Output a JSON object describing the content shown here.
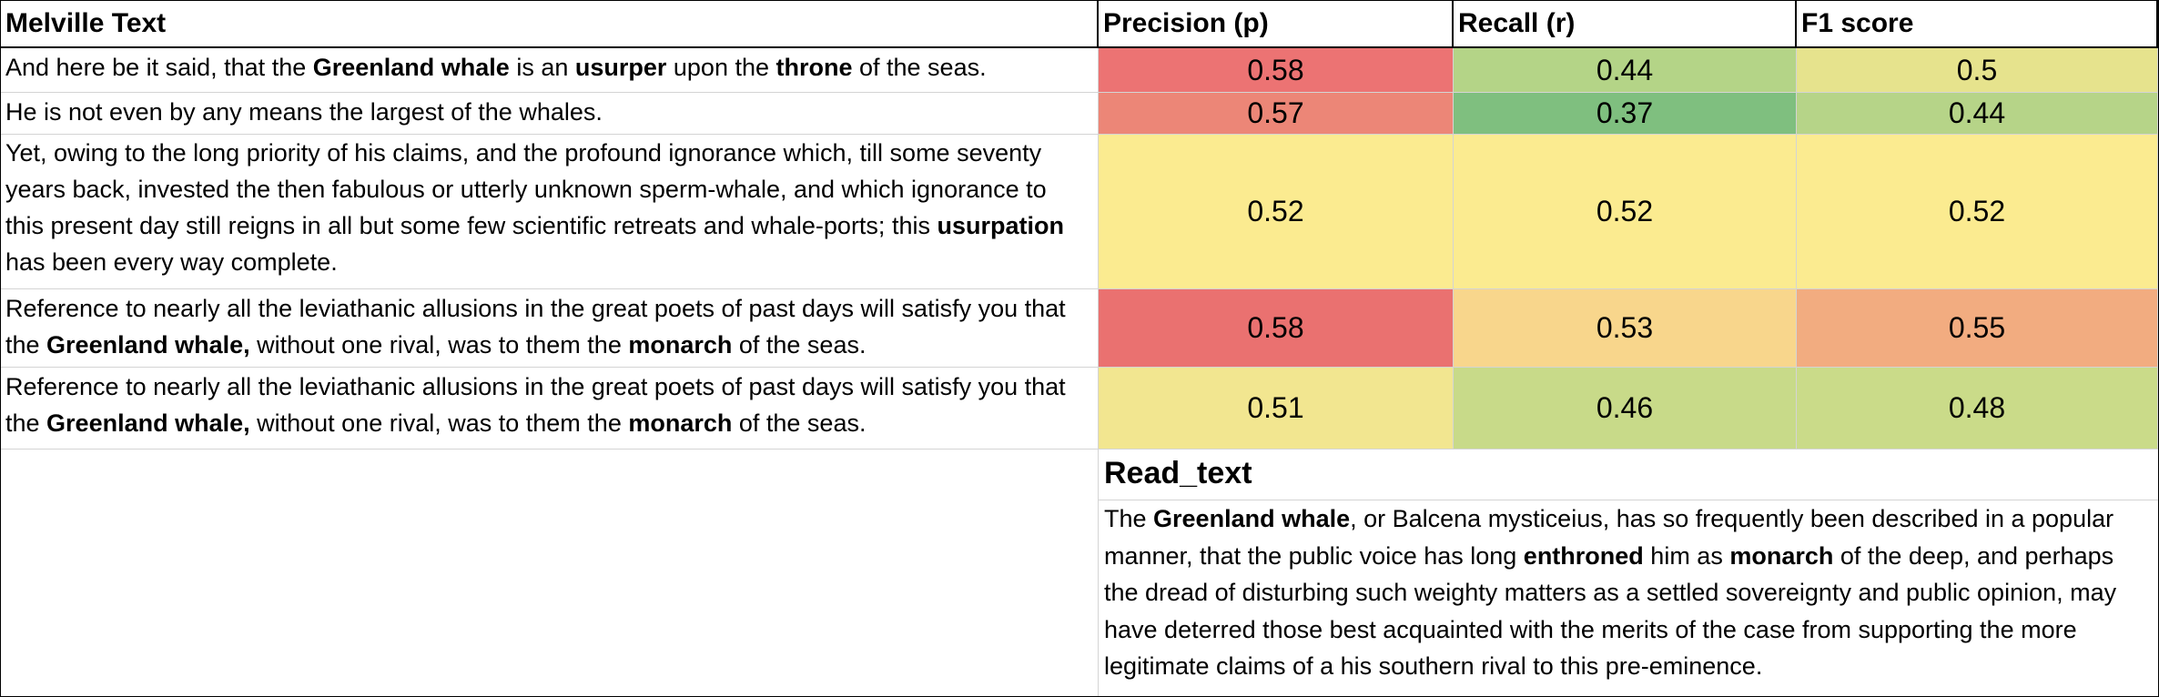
{
  "headers": {
    "text": "Melville Text",
    "precision": "Precision (p)",
    "recall": "Recall (r)",
    "f1": "F1 score"
  },
  "rows": [
    {
      "segments": [
        {
          "t": "And here be it said, that the "
        },
        {
          "t": "Greenland whale",
          "b": true
        },
        {
          "t": " is an "
        },
        {
          "t": "usurper",
          "b": true
        },
        {
          "t": " upon the "
        },
        {
          "t": "throne",
          "b": true
        },
        {
          "t": " of the seas."
        }
      ],
      "precision": "0.58",
      "recall": "0.44",
      "f1": "0.5",
      "colors": {
        "precision": "#ec7373",
        "recall": "#b4d487",
        "f1": "#e6e38d"
      }
    },
    {
      "segments": [
        {
          "t": "He is not even by any means the largest of the whales."
        }
      ],
      "precision": "0.57",
      "recall": "0.37",
      "f1": "0.44",
      "colors": {
        "precision": "#ec8677",
        "recall": "#7fbf7f",
        "f1": "#b6d488"
      }
    },
    {
      "segments": [
        {
          "t": "Yet, owing to the long priority of his claims, and the profound ignorance which, till some seventy years back, invested the then fabulous or utterly unknown sperm-whale, and which ignorance to this present day still reigns in all but some few scientific retreats and whale-ports; this "
        },
        {
          "t": "usurpation",
          "b": true
        },
        {
          "t": " has been every way complete."
        }
      ],
      "precision": "0.52",
      "recall": "0.52",
      "f1": "0.52",
      "colors": {
        "precision": "#fbeb90",
        "recall": "#fbeb90",
        "f1": "#fbeb90"
      }
    },
    {
      "segments": [
        {
          "t": "Reference to nearly all the leviathanic allusions in the great poets of past days will satisfy you that the "
        },
        {
          "t": "Greenland whale,",
          "b": true
        },
        {
          "t": " without one rival, was to them the "
        },
        {
          "t": "monarch",
          "b": true
        },
        {
          "t": " of the seas."
        }
      ],
      "precision": "0.58",
      "recall": "0.53",
      "f1": "0.55",
      "colors": {
        "precision": "#ea7170",
        "recall": "#f8d68c",
        "f1": "#f2ac80"
      }
    },
    {
      "segments": [
        {
          "t": "Reference to nearly all the leviathanic allusions in the great poets of past days will satisfy you that the "
        },
        {
          "t": "Greenland whale,",
          "b": true
        },
        {
          "t": " without one rival, was to them the "
        },
        {
          "t": "monarch",
          "b": true
        },
        {
          "t": " of the seas."
        }
      ],
      "precision": "0.51",
      "recall": "0.46",
      "f1": "0.48",
      "colors": {
        "precision": "#f2e690",
        "recall": "#c8da89",
        "f1": "#cadb89"
      }
    }
  ],
  "read_text": {
    "title": "Read_text",
    "segments": [
      {
        "t": "The "
      },
      {
        "t": "Greenland whale",
        "b": true
      },
      {
        "t": ", or Balcena mysticeius, has so  frequently been described in a popular manner, that the  public voice has long "
      },
      {
        "t": "enthroned",
        "b": true
      },
      {
        "t": " him as "
      },
      {
        "t": "monarch",
        "b": true
      },
      {
        "t": " of the  deep, and perhaps the dread of disturbing such weighty  matters as a settled sovereignty and public opinion, may  have deterred those best acquainted with the merits of  the case from supporting the more legitimate claims of a his southern rival to this pre-eminence."
      }
    ]
  }
}
